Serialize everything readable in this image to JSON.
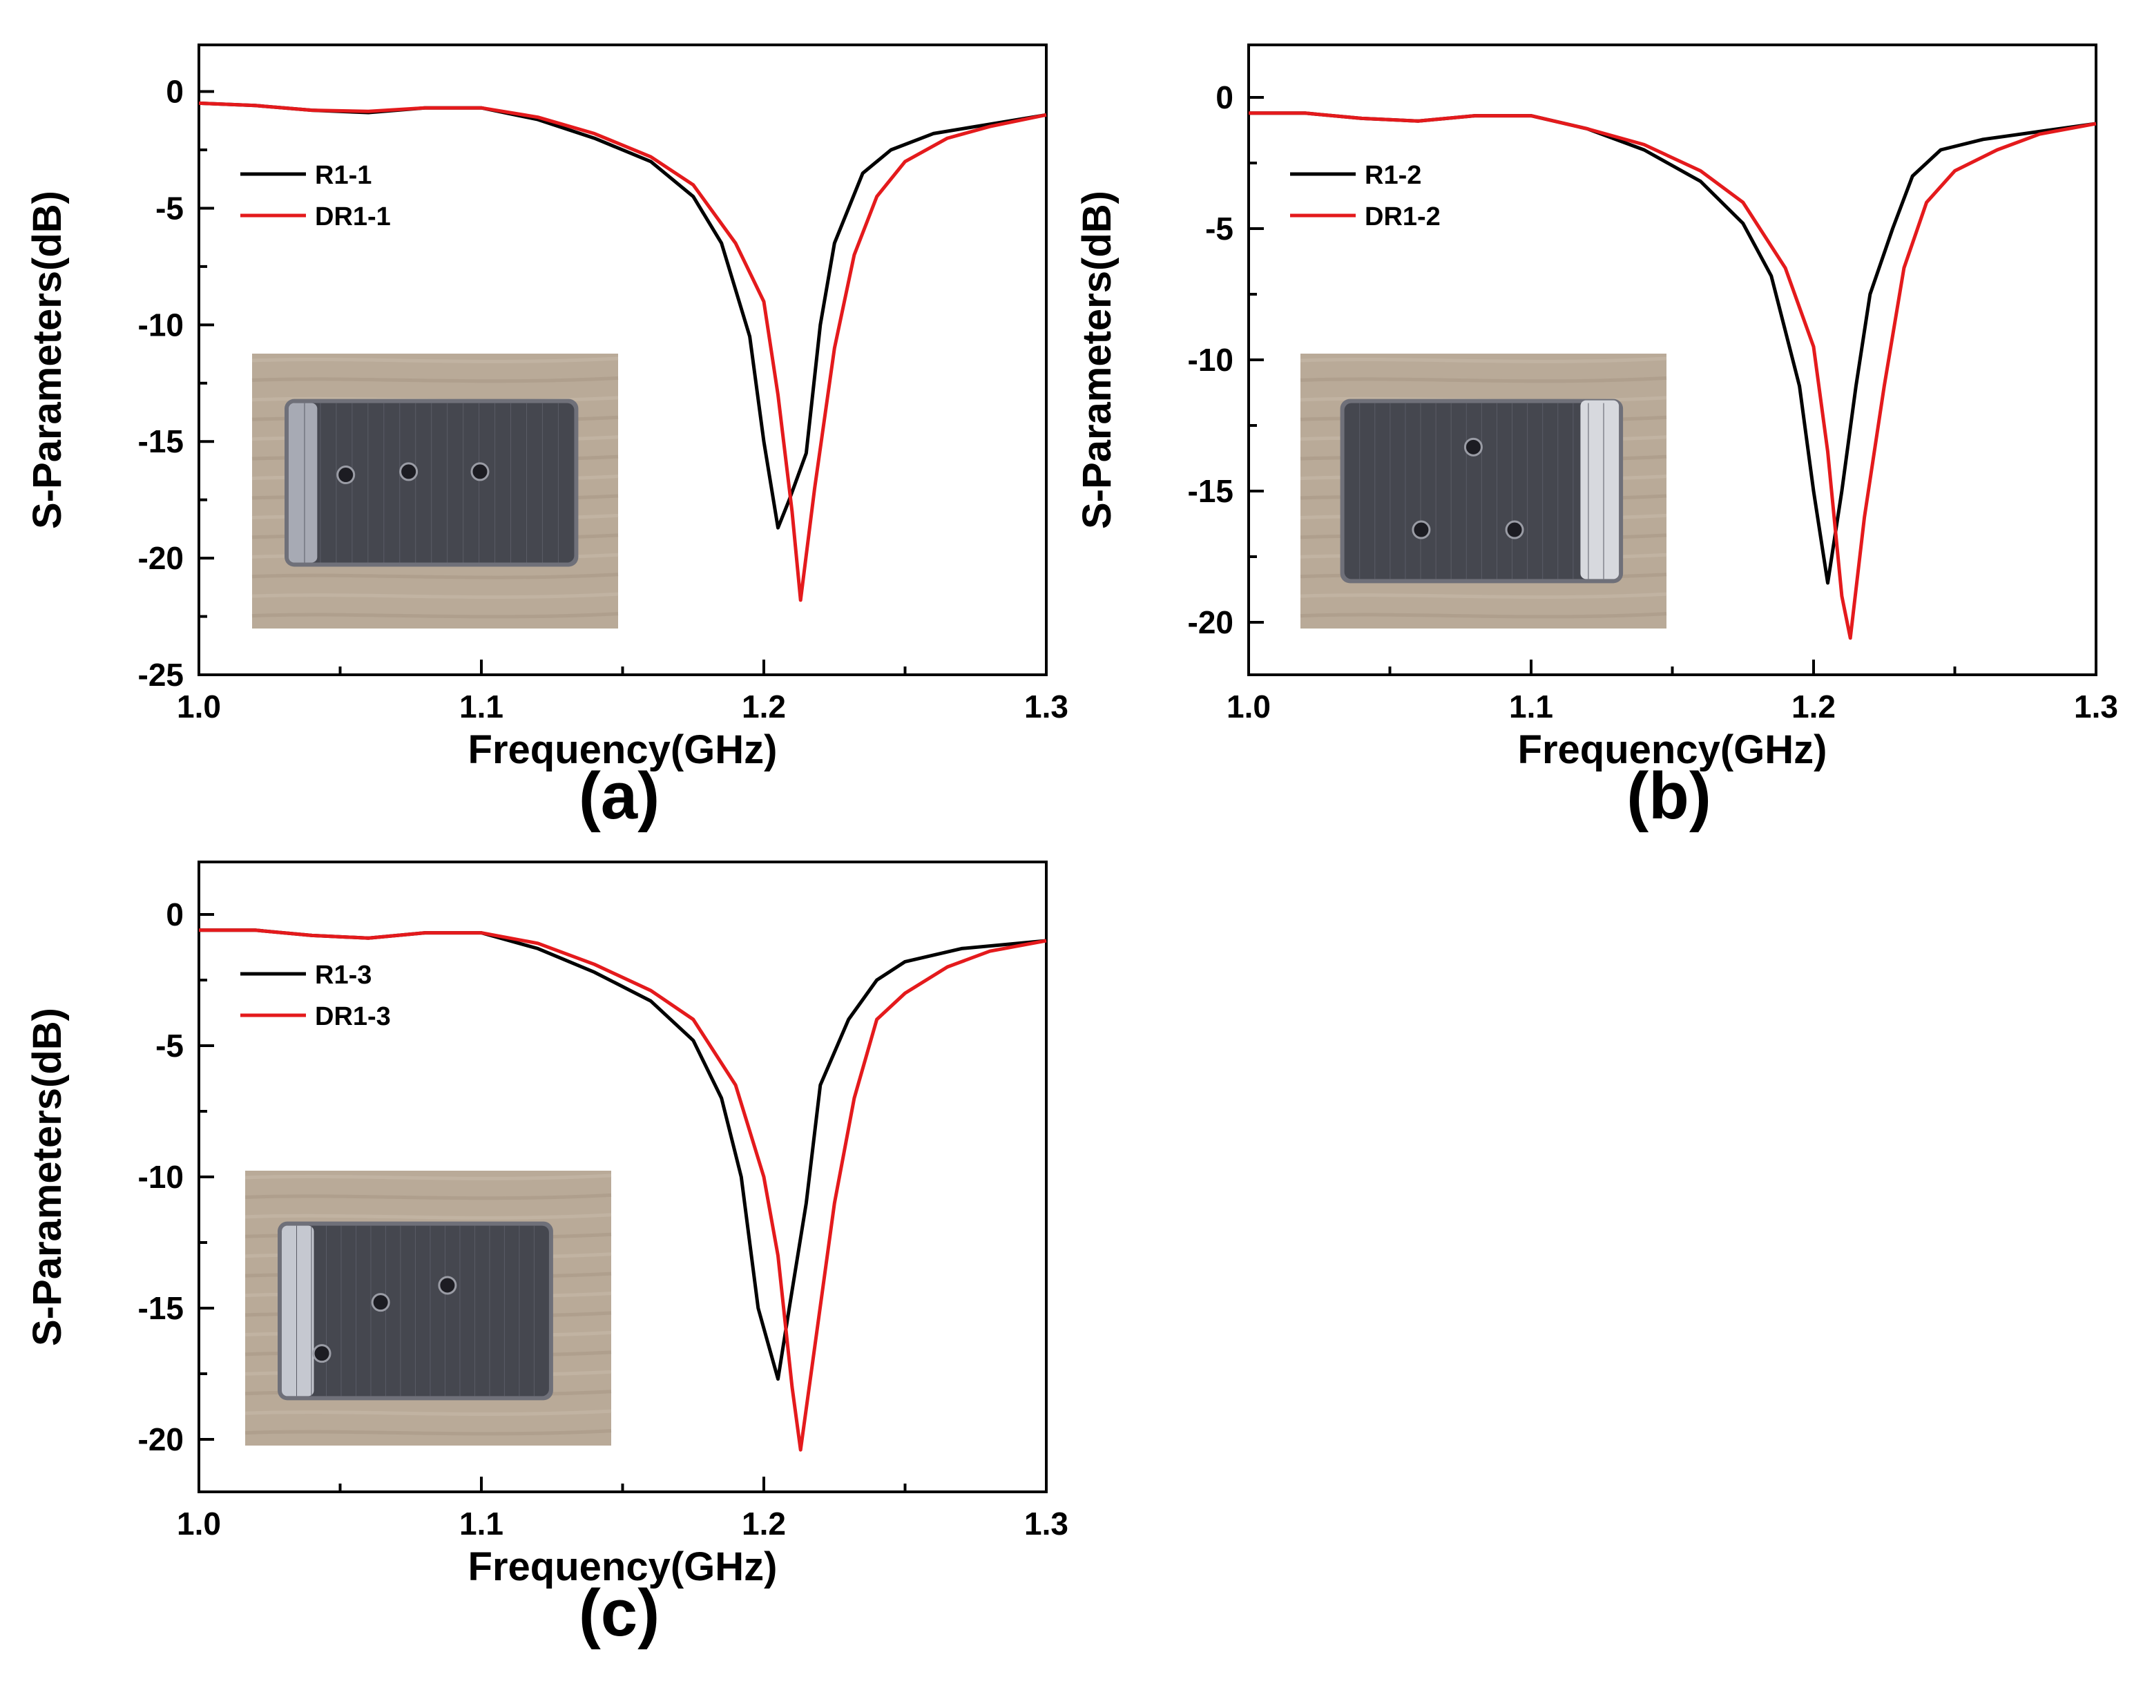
{
  "figure": {
    "panels": [
      {
        "label": "(a)",
        "ylabel": "S-Parameters(dB)",
        "xlabel": "Frequency(GHz)",
        "photo": "fabricated-sample-photo"
      },
      {
        "label": "(b)",
        "ylabel": "S-Parameters(dB)",
        "xlabel": "Frequency(GHz)",
        "photo": "fabricated-sample-photo"
      },
      {
        "label": "(c)",
        "ylabel": "S-Parameters(dB)",
        "xlabel": "Frequency(GHz)",
        "photo": "fabricated-sample-photo"
      }
    ],
    "colors": {
      "measured": "#000000",
      "dielectric": "#e41a1c"
    }
  },
  "chart_data": [
    {
      "type": "line",
      "xlabel": "Frequency(GHz)",
      "ylabel": "S-Parameters(dB)",
      "xlim": [
        1.0,
        1.3
      ],
      "ylim": [
        -25,
        2
      ],
      "xticks": [
        "1.0",
        "1.1",
        "1.2",
        "1.3"
      ],
      "yticks": [
        "0",
        "-5",
        "-10",
        "-15",
        "-20",
        "-25"
      ],
      "legend_position": "upper-left",
      "grid": false,
      "series": [
        {
          "name": "R1-1",
          "color": "#000000",
          "points": [
            [
              1.0,
              -0.5
            ],
            [
              1.02,
              -0.6
            ],
            [
              1.04,
              -0.8
            ],
            [
              1.06,
              -0.9
            ],
            [
              1.08,
              -0.7
            ],
            [
              1.1,
              -0.7
            ],
            [
              1.12,
              -1.2
            ],
            [
              1.14,
              -2.0
            ],
            [
              1.16,
              -3.0
            ],
            [
              1.175,
              -4.5
            ],
            [
              1.185,
              -6.5
            ],
            [
              1.195,
              -10.5
            ],
            [
              1.2,
              -15.0
            ],
            [
              1.205,
              -18.7
            ],
            [
              1.209,
              -17.5
            ],
            [
              1.215,
              -15.5
            ],
            [
              1.22,
              -10.0
            ],
            [
              1.225,
              -6.5
            ],
            [
              1.235,
              -3.5
            ],
            [
              1.245,
              -2.5
            ],
            [
              1.26,
              -1.8
            ],
            [
              1.28,
              -1.4
            ],
            [
              1.3,
              -1.0
            ]
          ]
        },
        {
          "name": "DR1-1",
          "color": "#e41a1c",
          "points": [
            [
              1.0,
              -0.5
            ],
            [
              1.02,
              -0.6
            ],
            [
              1.04,
              -0.8
            ],
            [
              1.06,
              -0.85
            ],
            [
              1.08,
              -0.7
            ],
            [
              1.1,
              -0.7
            ],
            [
              1.12,
              -1.1
            ],
            [
              1.14,
              -1.8
            ],
            [
              1.16,
              -2.8
            ],
            [
              1.175,
              -4.0
            ],
            [
              1.19,
              -6.5
            ],
            [
              1.2,
              -9.0
            ],
            [
              1.205,
              -13.0
            ],
            [
              1.21,
              -18.0
            ],
            [
              1.213,
              -21.8
            ],
            [
              1.218,
              -17.0
            ],
            [
              1.225,
              -11.0
            ],
            [
              1.232,
              -7.0
            ],
            [
              1.24,
              -4.5
            ],
            [
              1.25,
              -3.0
            ],
            [
              1.265,
              -2.0
            ],
            [
              1.28,
              -1.5
            ],
            [
              1.3,
              -1.0
            ]
          ]
        }
      ]
    },
    {
      "type": "line",
      "xlabel": "Frequency(GHz)",
      "ylabel": "S-Parameters(dB)",
      "xlim": [
        1.0,
        1.3
      ],
      "ylim": [
        -22,
        2
      ],
      "xticks": [
        "1.0",
        "1.1",
        "1.2",
        "1.3"
      ],
      "yticks": [
        "0",
        "-5",
        "-10",
        "-15",
        "-20"
      ],
      "legend_position": "upper-left",
      "grid": false,
      "series": [
        {
          "name": "R1-2",
          "color": "#000000",
          "points": [
            [
              1.0,
              -0.6
            ],
            [
              1.02,
              -0.6
            ],
            [
              1.04,
              -0.8
            ],
            [
              1.06,
              -0.9
            ],
            [
              1.08,
              -0.7
            ],
            [
              1.1,
              -0.7
            ],
            [
              1.12,
              -1.2
            ],
            [
              1.14,
              -2.0
            ],
            [
              1.16,
              -3.2
            ],
            [
              1.175,
              -4.8
            ],
            [
              1.185,
              -6.8
            ],
            [
              1.195,
              -11.0
            ],
            [
              1.2,
              -15.0
            ],
            [
              1.205,
              -18.5
            ],
            [
              1.21,
              -15.0
            ],
            [
              1.215,
              -11.0
            ],
            [
              1.22,
              -7.5
            ],
            [
              1.228,
              -5.0
            ],
            [
              1.235,
              -3.0
            ],
            [
              1.245,
              -2.0
            ],
            [
              1.26,
              -1.6
            ],
            [
              1.28,
              -1.3
            ],
            [
              1.3,
              -1.0
            ]
          ]
        },
        {
          "name": "DR1-2",
          "color": "#e41a1c",
          "points": [
            [
              1.0,
              -0.6
            ],
            [
              1.02,
              -0.6
            ],
            [
              1.04,
              -0.8
            ],
            [
              1.06,
              -0.9
            ],
            [
              1.08,
              -0.7
            ],
            [
              1.1,
              -0.7
            ],
            [
              1.12,
              -1.2
            ],
            [
              1.14,
              -1.8
            ],
            [
              1.16,
              -2.8
            ],
            [
              1.175,
              -4.0
            ],
            [
              1.19,
              -6.5
            ],
            [
              1.2,
              -9.5
            ],
            [
              1.205,
              -13.5
            ],
            [
              1.21,
              -19.0
            ],
            [
              1.213,
              -20.6
            ],
            [
              1.218,
              -16.0
            ],
            [
              1.225,
              -11.0
            ],
            [
              1.232,
              -6.5
            ],
            [
              1.24,
              -4.0
            ],
            [
              1.25,
              -2.8
            ],
            [
              1.265,
              -2.0
            ],
            [
              1.28,
              -1.4
            ],
            [
              1.3,
              -1.0
            ]
          ]
        }
      ]
    },
    {
      "type": "line",
      "xlabel": "Frequency(GHz)",
      "ylabel": "S-Parameters(dB)",
      "xlim": [
        1.0,
        1.3
      ],
      "ylim": [
        -22,
        2
      ],
      "xticks": [
        "1.0",
        "1.1",
        "1.2",
        "1.3"
      ],
      "yticks": [
        "0",
        "-5",
        "-10",
        "-15",
        "-20"
      ],
      "legend_position": "upper-left",
      "grid": false,
      "series": [
        {
          "name": "R1-3",
          "color": "#000000",
          "points": [
            [
              1.0,
              -0.6
            ],
            [
              1.02,
              -0.6
            ],
            [
              1.04,
              -0.8
            ],
            [
              1.06,
              -0.9
            ],
            [
              1.08,
              -0.7
            ],
            [
              1.1,
              -0.7
            ],
            [
              1.12,
              -1.3
            ],
            [
              1.14,
              -2.2
            ],
            [
              1.16,
              -3.3
            ],
            [
              1.175,
              -4.8
            ],
            [
              1.185,
              -7.0
            ],
            [
              1.192,
              -10.0
            ],
            [
              1.198,
              -15.0
            ],
            [
              1.205,
              -17.7
            ],
            [
              1.209,
              -15.0
            ],
            [
              1.215,
              -11.0
            ],
            [
              1.22,
              -6.5
            ],
            [
              1.23,
              -4.0
            ],
            [
              1.24,
              -2.5
            ],
            [
              1.25,
              -1.8
            ],
            [
              1.27,
              -1.3
            ],
            [
              1.3,
              -1.0
            ]
          ]
        },
        {
          "name": "DR1-3",
          "color": "#e41a1c",
          "points": [
            [
              1.0,
              -0.6
            ],
            [
              1.02,
              -0.6
            ],
            [
              1.04,
              -0.8
            ],
            [
              1.06,
              -0.9
            ],
            [
              1.08,
              -0.7
            ],
            [
              1.1,
              -0.7
            ],
            [
              1.12,
              -1.1
            ],
            [
              1.14,
              -1.9
            ],
            [
              1.16,
              -2.9
            ],
            [
              1.175,
              -4.0
            ],
            [
              1.19,
              -6.5
            ],
            [
              1.2,
              -10.0
            ],
            [
              1.205,
              -13.0
            ],
            [
              1.21,
              -18.0
            ],
            [
              1.213,
              -20.4
            ],
            [
              1.218,
              -16.5
            ],
            [
              1.225,
              -11.0
            ],
            [
              1.232,
              -7.0
            ],
            [
              1.24,
              -4.0
            ],
            [
              1.25,
              -3.0
            ],
            [
              1.265,
              -2.0
            ],
            [
              1.28,
              -1.4
            ],
            [
              1.3,
              -1.0
            ]
          ]
        }
      ]
    }
  ]
}
